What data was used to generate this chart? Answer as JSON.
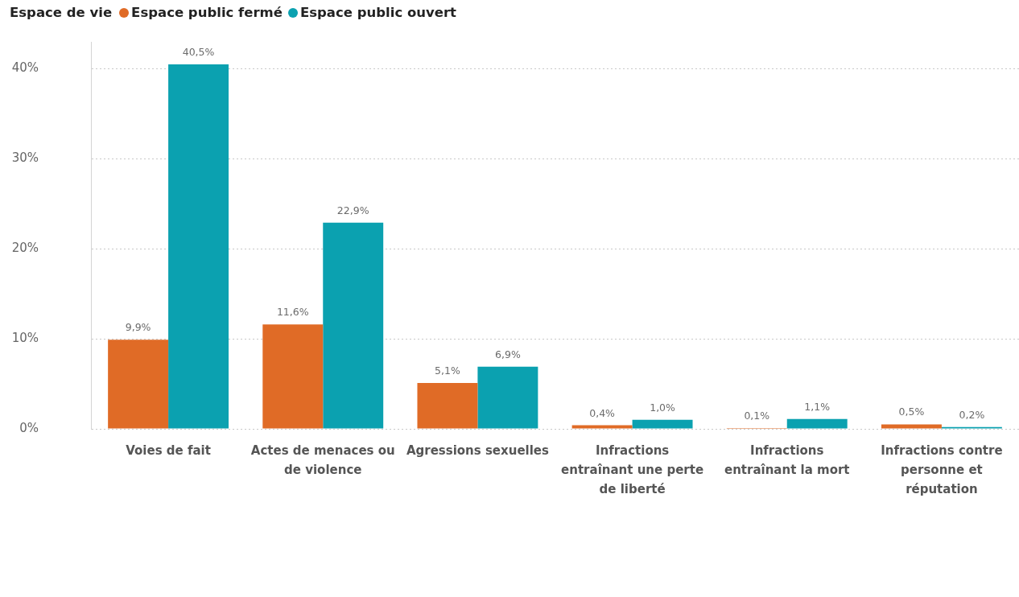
{
  "chart_data": {
    "type": "bar",
    "legend_title": "Espace de vie",
    "legend": "top left",
    "grid": "y",
    "categories": [
      "Voies de fait",
      "Actes de menaces ou de violence",
      "Agressions sexuelles",
      "Infractions entraînant une perte de liberté",
      "Infractions entraînant la mort",
      "Infractions contre personne et réputation"
    ],
    "series": [
      {
        "name": "Espace public fermé",
        "color": "#e06b26",
        "values": [
          9.9,
          11.6,
          5.1,
          0.4,
          0.1,
          0.5
        ],
        "value_labels": [
          "9,9%",
          "11,6%",
          "5,1%",
          "0,4%",
          "0,1%",
          "0,5%"
        ]
      },
      {
        "name": "Espace public ouvert",
        "color": "#0ba1b0",
        "values": [
          40.5,
          22.9,
          6.9,
          1.0,
          1.1,
          0.2
        ],
        "value_labels": [
          "40,5%",
          "22,9%",
          "6,9%",
          "1,0%",
          "1,1%",
          "0,2%"
        ]
      }
    ],
    "ylim": [
      0,
      43
    ],
    "yticks": [
      {
        "value": 0,
        "label": "0%"
      },
      {
        "value": 10,
        "label": "10%"
      },
      {
        "value": 20,
        "label": "20%"
      },
      {
        "value": 30,
        "label": "30%"
      },
      {
        "value": 40,
        "label": "40%"
      }
    ]
  }
}
